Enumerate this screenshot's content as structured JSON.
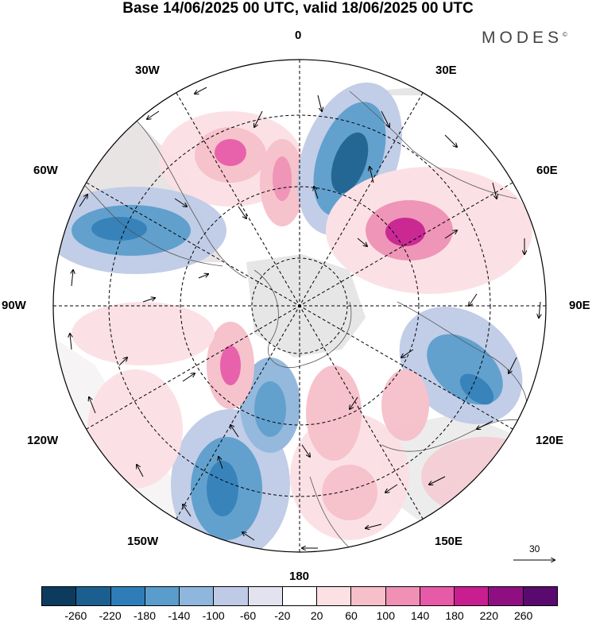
{
  "title": "Base 14/06/2025 00 UTC, valid 18/06/2025 00 UTC",
  "brand": "MODES",
  "brand_mark": "©",
  "map_labels": {
    "lon_0": "0",
    "lon_30e": "30E",
    "lon_60e": "60E",
    "lon_90e": "90E",
    "lon_120e": "120E",
    "lon_150e": "150E",
    "lon_180": "180",
    "lon_150w": "150W",
    "lon_120w": "120W",
    "lon_90w": "90W",
    "lon_60w": "60W",
    "lon_30w": "30W"
  },
  "vector_scale_label": "30",
  "colorbar": {
    "colors": [
      "#0d3b5e",
      "#1a5f8f",
      "#2f7db8",
      "#5a9ccc",
      "#8fb6dc",
      "#bfcbe6",
      "#e3e3f0",
      "#ffffff",
      "#fbe0e4",
      "#f6bfca",
      "#ef90b4",
      "#e75aa7",
      "#c81e8f",
      "#8f0f83",
      "#5a0a6e"
    ],
    "ticks": [
      "-260",
      "-220",
      "-180",
      "-140",
      "-100",
      "-60",
      "-20",
      "20",
      "60",
      "100",
      "140",
      "180",
      "220",
      "260"
    ]
  },
  "colors": {
    "land": "#e6e6e6",
    "coast": "#555555",
    "grid": "#000000"
  }
}
